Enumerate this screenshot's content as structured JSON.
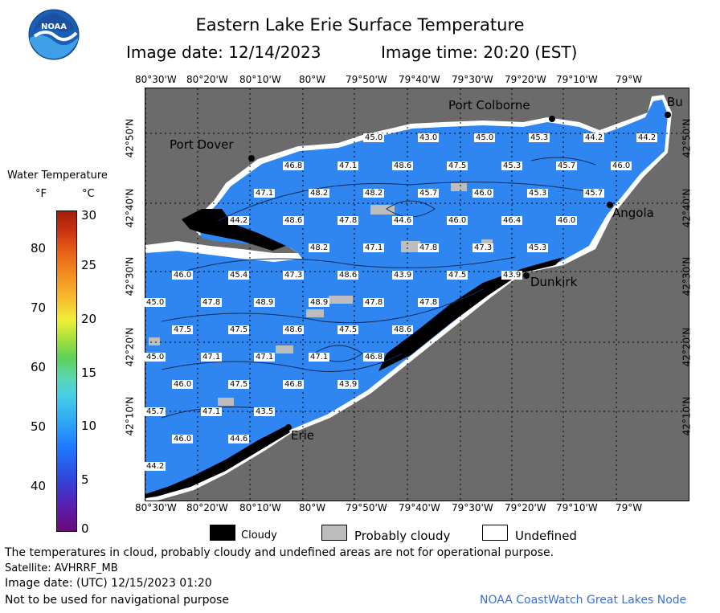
{
  "header": {
    "title": "Eastern Lake Erie Surface Temperature",
    "image_date": "Image date: 12/14/2023",
    "image_time": "Image time: 20:20 (EST)",
    "logo_text": "NOAA"
  },
  "legend": {
    "title": "Water Temperature",
    "unit_f": "°F",
    "unit_c": "°C",
    "f_ticks": [
      "80",
      "70",
      "60",
      "50",
      "40"
    ],
    "c_ticks": [
      "30",
      "25",
      "20",
      "15",
      "10",
      "5",
      "0"
    ]
  },
  "axes": {
    "lon_labels": [
      "80°30'W",
      "80°20'W",
      "80°10'W",
      "80°W",
      "79°50'W",
      "79°40'W",
      "79°30'W",
      "79°20'W",
      "79°10'W",
      "79°W"
    ],
    "lat_labels": [
      "42°50'N",
      "42°40'N",
      "42°30'N",
      "42°20'N",
      "42°10'N"
    ]
  },
  "places": [
    {
      "name": "Port Colborne"
    },
    {
      "name": "Bu"
    },
    {
      "name": "Port Dover"
    },
    {
      "name": "Angola"
    },
    {
      "name": "Dunkirk"
    },
    {
      "name": "Erie"
    }
  ],
  "temperatures": [
    {
      "v": "45.0"
    },
    {
      "v": "43.0"
    },
    {
      "v": "45.0"
    },
    {
      "v": "45.3"
    },
    {
      "v": "44.2"
    },
    {
      "v": "44.2"
    },
    {
      "v": "46.8"
    },
    {
      "v": "47.1"
    },
    {
      "v": "48.6"
    },
    {
      "v": "47.5"
    },
    {
      "v": "45.3"
    },
    {
      "v": "45.7"
    },
    {
      "v": "46.0"
    },
    {
      "v": "47.1"
    },
    {
      "v": "48.2"
    },
    {
      "v": "48.2"
    },
    {
      "v": "45.7"
    },
    {
      "v": "46.0"
    },
    {
      "v": "45.3"
    },
    {
      "v": "45.7"
    },
    {
      "v": "44.2"
    },
    {
      "v": "48.6"
    },
    {
      "v": "47.8"
    },
    {
      "v": "44.6"
    },
    {
      "v": "46.0"
    },
    {
      "v": "46.4"
    },
    {
      "v": "46.0"
    },
    {
      "v": "48.2"
    },
    {
      "v": "47.1"
    },
    {
      "v": "47.8"
    },
    {
      "v": "47.3"
    },
    {
      "v": "45.3"
    },
    {
      "v": "46.0"
    },
    {
      "v": "45.4"
    },
    {
      "v": "47.3"
    },
    {
      "v": "48.6"
    },
    {
      "v": "43.9"
    },
    {
      "v": "47.5"
    },
    {
      "v": "43.9"
    },
    {
      "v": "45.0"
    },
    {
      "v": "47.8"
    },
    {
      "v": "48.9"
    },
    {
      "v": "48.9"
    },
    {
      "v": "47.8"
    },
    {
      "v": "47.8"
    },
    {
      "v": "47.5"
    },
    {
      "v": "47.5"
    },
    {
      "v": "48.6"
    },
    {
      "v": "47.5"
    },
    {
      "v": "48.6"
    },
    {
      "v": "45.0"
    },
    {
      "v": "47.1"
    },
    {
      "v": "47.1"
    },
    {
      "v": "47.1"
    },
    {
      "v": "46.8"
    },
    {
      "v": "46.0"
    },
    {
      "v": "47.5"
    },
    {
      "v": "46.8"
    },
    {
      "v": "43.9"
    },
    {
      "v": "45.7"
    },
    {
      "v": "47.1"
    },
    {
      "v": "43.5"
    },
    {
      "v": "46.0"
    },
    {
      "v": "44.6"
    },
    {
      "v": "44.2"
    }
  ],
  "key": {
    "cloudy": "Cloudy",
    "probably_cloudy": "Probably cloudy",
    "undefined": "Undefined"
  },
  "footer": {
    "note": "The temperatures in cloud, probably cloudy and undefined areas are not for operational purpose.",
    "satellite": "Satellite: AVHRRF_MB",
    "utc_date": "Image date: (UTC) 12/15/2023  01:20",
    "nav": "Not to be used for navigational purpose",
    "credit": "NOAA CoastWatch Great Lakes Node"
  },
  "colors": {
    "land": "#6b6b6b",
    "water": "#2f86f0",
    "water_light": "#48a8f5",
    "cloud": "#000000",
    "probably_cloudy": "#bdbdbd",
    "undefined": "#ffffff"
  }
}
